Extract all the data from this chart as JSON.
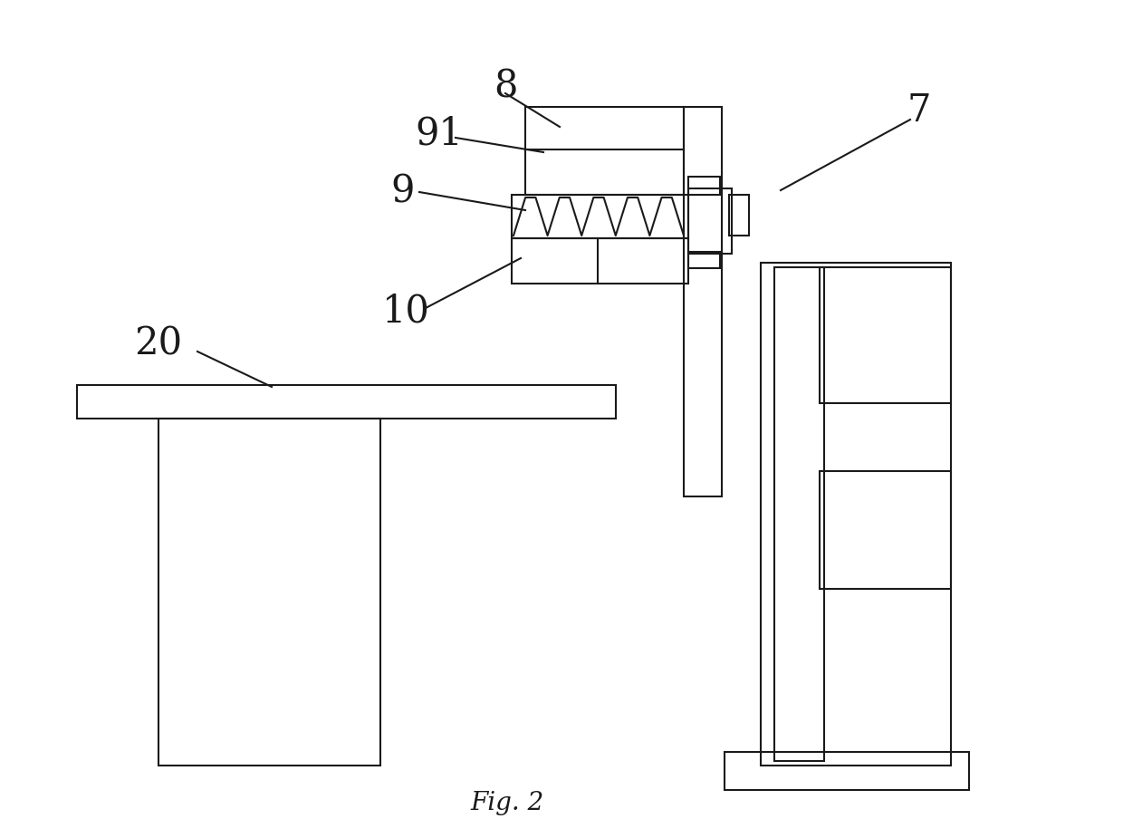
{
  "bg_color": "#ffffff",
  "line_color": "#1a1a1a",
  "lw": 1.5,
  "fig_caption": "Fig. 2",
  "label_fontsize": 30
}
